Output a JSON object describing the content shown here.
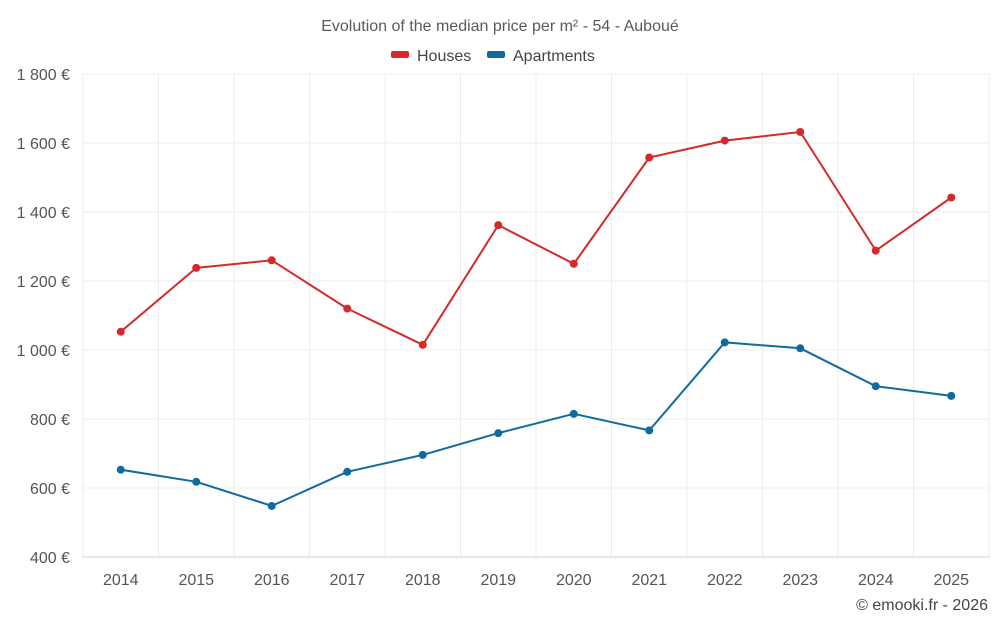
{
  "chart_data": {
    "type": "line",
    "title": "Evolution of the median price per m² - 54 - Auboué",
    "xlabel": "",
    "ylabel": "",
    "x": [
      "2014",
      "2015",
      "2016",
      "2017",
      "2018",
      "2019",
      "2020",
      "2021",
      "2022",
      "2023",
      "2024",
      "2025"
    ],
    "ylim": [
      400,
      1800
    ],
    "yticks": [
      400,
      600,
      800,
      1000,
      1200,
      1400,
      1600,
      1800
    ],
    "ytick_labels": [
      "400 €",
      "600 €",
      "800 €",
      "1 000 €",
      "1 200 €",
      "1 400 €",
      "1 600 €",
      "1 800 €"
    ],
    "grid": true,
    "legend_position": "top-center",
    "series": [
      {
        "name": "Houses",
        "color": "#d42a2a",
        "values": [
          1053,
          1238,
          1260,
          1120,
          1015,
          1362,
          1250,
          1558,
          1607,
          1632,
          1288,
          1442
        ]
      },
      {
        "name": "Apartments",
        "color": "#0f6a9e",
        "values": [
          653,
          618,
          548,
          647,
          696,
          759,
          815,
          767,
          1022,
          1005,
          895,
          867
        ]
      }
    ]
  },
  "credit": "© emooki.fr - 2026"
}
